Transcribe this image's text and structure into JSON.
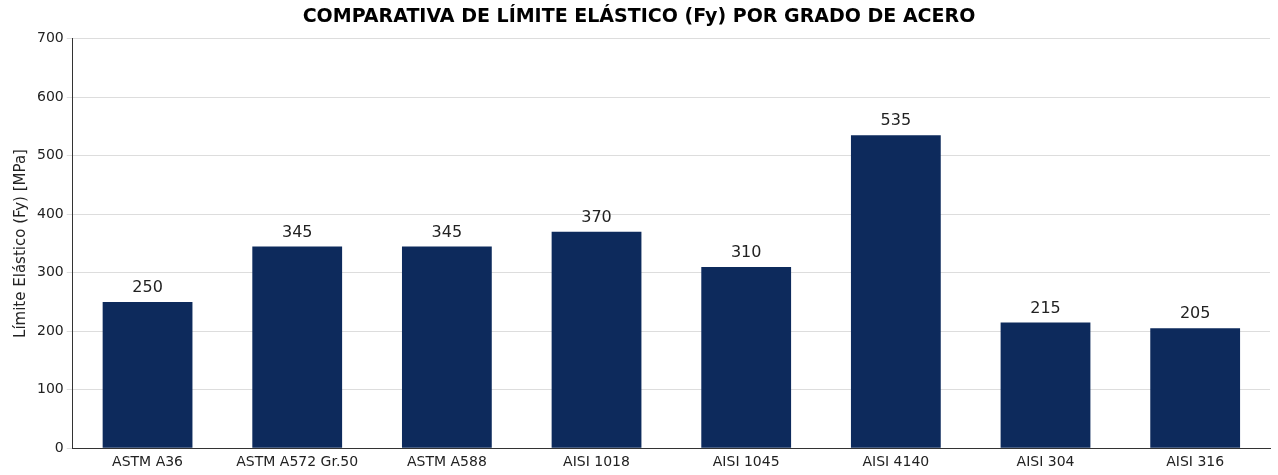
{
  "chart_data": {
    "type": "bar",
    "title": "COMPARATIVA DE LÍMITE ELÁSTICO (Fy) POR GRADO DE ACERO",
    "ylabel": "Límite Elástico (Fy) [MPa]",
    "categories": [
      "ASTM A36",
      "ASTM A572 Gr.50",
      "ASTM A588",
      "AISI 1018",
      "AISI 1045",
      "AISI 4140",
      "AISI 304",
      "AISI 316"
    ],
    "values": [
      250,
      345,
      345,
      370,
      310,
      535,
      215,
      205
    ],
    "color": "#0d2a5c",
    "ylim": [
      0,
      700
    ],
    "yticks": [
      0,
      100,
      200,
      300,
      400,
      500,
      600,
      700
    ],
    "grid": "y",
    "data_labels": true
  }
}
